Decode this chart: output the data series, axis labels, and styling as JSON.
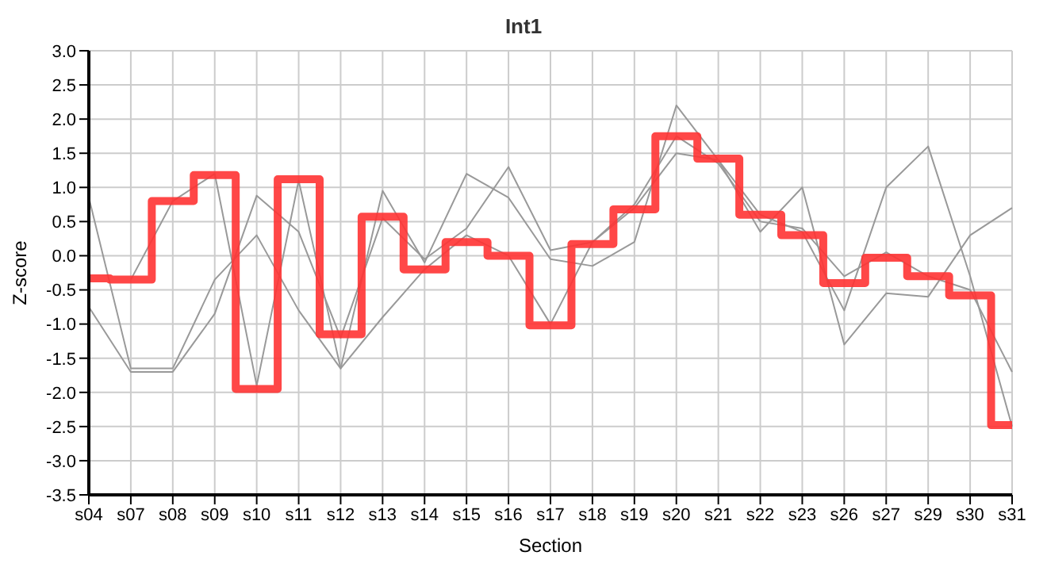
{
  "chart_data": {
    "type": "line",
    "title": "Int1",
    "xlabel": "Section",
    "ylabel": "Z-score",
    "categories": [
      "s04",
      "s07",
      "s08",
      "s09",
      "s10",
      "s11",
      "s12",
      "s13",
      "s14",
      "s15",
      "s16",
      "s17",
      "s18",
      "s19",
      "s20",
      "s21",
      "s22",
      "s23",
      "s26",
      "s27",
      "s29",
      "s30",
      "s31"
    ],
    "series": [
      {
        "color": "#999999",
        "values": [
          0.85,
          -1.65,
          -1.65,
          -0.35,
          0.3,
          -0.8,
          -1.65,
          0.95,
          -0.1,
          1.2,
          0.85,
          -0.05,
          -0.15,
          0.2,
          2.2,
          1.4,
          0.35,
          1.0,
          -1.3,
          -0.55,
          -0.6,
          0.3,
          0.7
        ]
      },
      {
        "color": "#999999",
        "values": [
          -0.75,
          -1.7,
          -1.7,
          -0.85,
          0.88,
          0.35,
          -1.2,
          0.55,
          -0.05,
          0.4,
          1.3,
          0.08,
          0.2,
          0.75,
          1.75,
          1.35,
          0.5,
          0.4,
          -0.3,
          0.05,
          -0.3,
          -0.5,
          -1.7
        ]
      },
      {
        "color": "#999999",
        "values": [
          null,
          -0.35,
          0.8,
          1.2,
          -1.9,
          1.1,
          -1.65,
          -0.9,
          -0.2,
          0.3,
          0.0,
          -1.0,
          0.2,
          0.7,
          1.5,
          1.4,
          0.6,
          0.35,
          -0.8,
          1.0,
          1.6,
          -0.3,
          -2.5
        ]
      },
      {
        "type": "step",
        "color": "#ff3333",
        "values": [
          -0.33,
          -0.35,
          0.8,
          1.18,
          -1.95,
          1.12,
          -1.15,
          0.57,
          -0.2,
          0.2,
          0.0,
          -1.02,
          0.17,
          0.68,
          1.75,
          1.42,
          0.6,
          0.3,
          -0.4,
          -0.03,
          -0.3,
          -0.58,
          -2.48
        ]
      }
    ],
    "ylim": [
      -3.5,
      3.0
    ],
    "yticks": [
      {
        "value": -3.5,
        "label": "-3.5"
      },
      {
        "value": -3,
        "label": "-3.0"
      },
      {
        "value": -2.5,
        "label": "-2.5"
      },
      {
        "value": -2,
        "label": "-2.0"
      },
      {
        "value": -1.5,
        "label": "-1.5"
      },
      {
        "value": -1,
        "label": "-1.0"
      },
      {
        "value": -0.5,
        "label": "-0.5"
      },
      {
        "value": 0,
        "label": "0.0"
      },
      {
        "value": 0.5,
        "label": "0.5"
      },
      {
        "value": 1,
        "label": "1.0"
      },
      {
        "value": 1.5,
        "label": "1.5"
      },
      {
        "value": 2,
        "label": "2.0"
      },
      {
        "value": 2.5,
        "label": "2.5"
      },
      {
        "value": 3,
        "label": "3.0"
      }
    ],
    "grid": true,
    "marker": "none",
    "line_style": "solid"
  }
}
